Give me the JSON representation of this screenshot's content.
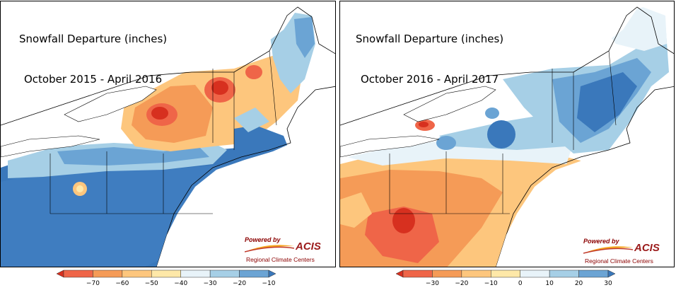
{
  "panels": [
    {
      "title_line1": "Snowfall Departure (inches)",
      "title_line2": "October 2015 - April 2016",
      "credit": {
        "powered": "Powered by",
        "brand": "ACIS",
        "sub": "Regional Climate Centers"
      },
      "legend": {
        "ticks": [
          "−70",
          "−60",
          "−50",
          "−40",
          "−30",
          "−20",
          "−10"
        ],
        "colors": [
          "#d7301f",
          "#ef6548",
          "#f59b57",
          "#fdc67d",
          "#fee8a8",
          "#e8f3f9",
          "#a6cfe6",
          "#6ba4d4",
          "#3a78bb"
        ]
      }
    },
    {
      "title_line1": "Snowfall Departure (inches)",
      "title_line2": "October 2016 - April 2017",
      "credit": {
        "powered": "Powered by",
        "brand": "ACIS",
        "sub": "Regional Climate Centers"
      },
      "legend": {
        "ticks": [
          "−30",
          "−20",
          "−10",
          "0",
          "10",
          "20",
          "30"
        ],
        "colors": [
          "#d7301f",
          "#ef6548",
          "#f59b57",
          "#fdc67d",
          "#fee8a8",
          "#e8f3f9",
          "#a6cfe6",
          "#6ba4d4",
          "#3a78bb"
        ]
      }
    }
  ]
}
